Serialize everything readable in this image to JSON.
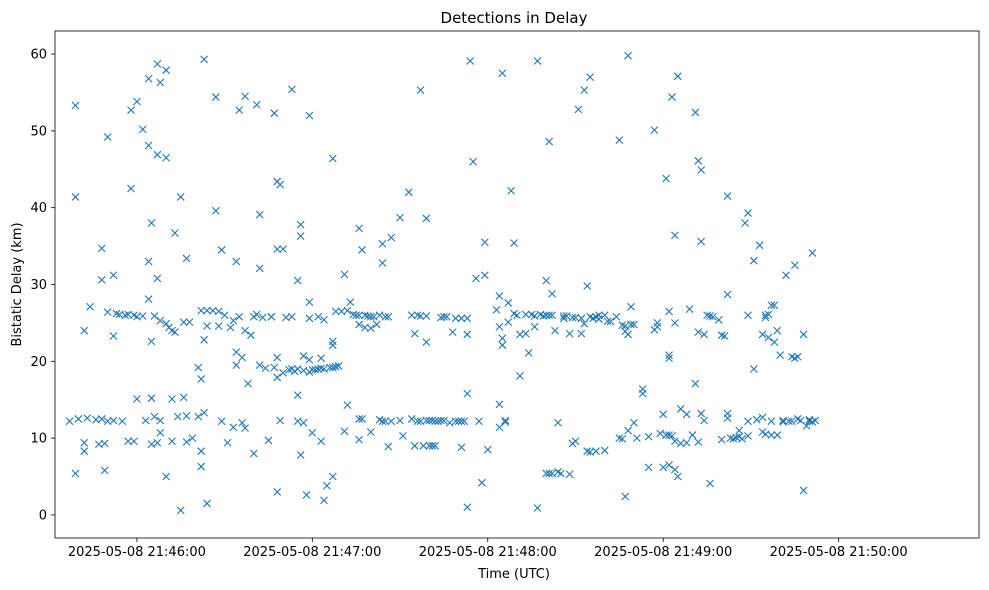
{
  "chart_data": {
    "type": "scatter",
    "title": "Detections in Delay",
    "xlabel": "Time (UTC)",
    "ylabel": "Bistatic Delay (km)",
    "marker": "x",
    "color": "#1f77b4",
    "grid": false,
    "x_unit": "seconds since 2025-05-08 21:46:00 UTC",
    "xlim": [
      -28,
      288
    ],
    "ylim": [
      -3,
      63
    ],
    "x_ticks": [
      {
        "value": 0,
        "label": "2025-05-08 21:46:00"
      },
      {
        "value": 60,
        "label": "2025-05-08 21:47:00"
      },
      {
        "value": 120,
        "label": "2025-05-08 21:48:00"
      },
      {
        "value": 180,
        "label": "2025-05-08 21:49:00"
      },
      {
        "value": 240,
        "label": "2025-05-08 21:50:00"
      }
    ],
    "y_ticks": [
      0,
      10,
      20,
      30,
      40,
      50,
      60
    ],
    "points": [
      [
        -23,
        12.2
      ],
      [
        -21,
        53.3
      ],
      [
        -21,
        41.4
      ],
      [
        -21,
        5.4
      ],
      [
        -20,
        12.5
      ],
      [
        -18,
        9.4
      ],
      [
        -18,
        24
      ],
      [
        -18,
        8.3
      ],
      [
        -17,
        12.6
      ],
      [
        -16,
        27.1
      ],
      [
        -14,
        12.4
      ],
      [
        -13,
        9.2
      ],
      [
        -12,
        34.7
      ],
      [
        -12,
        30.6
      ],
      [
        -12,
        12.5
      ],
      [
        -11,
        5.8
      ],
      [
        -11,
        9.3
      ],
      [
        -10,
        26.4
      ],
      [
        -10,
        49.2
      ],
      [
        -10,
        12.2
      ],
      [
        -8,
        31.2
      ],
      [
        -8,
        23.3
      ],
      [
        -8,
        12.3
      ],
      [
        -7,
        26.2
      ],
      [
        -6,
        26.1
      ],
      [
        -5,
        12.2
      ],
      [
        -4,
        26
      ],
      [
        -3,
        26.1
      ],
      [
        -3,
        9.6
      ],
      [
        -2,
        52.7
      ],
      [
        -2,
        42.5
      ],
      [
        -1,
        26
      ],
      [
        -1,
        9.6
      ],
      [
        0,
        25.8
      ],
      [
        0,
        53.8
      ],
      [
        0,
        15.1
      ],
      [
        2,
        50.2
      ],
      [
        2,
        25.9
      ],
      [
        3,
        12.3
      ],
      [
        4,
        28.1
      ],
      [
        4,
        33
      ],
      [
        4,
        48.1
      ],
      [
        4,
        56.8
      ],
      [
        5,
        38
      ],
      [
        5,
        22.6
      ],
      [
        5,
        15.2
      ],
      [
        5,
        9.2
      ],
      [
        6,
        25.9
      ],
      [
        6,
        12.8
      ],
      [
        7,
        58.7
      ],
      [
        7,
        46.9
      ],
      [
        7,
        30.8
      ],
      [
        7,
        9.4
      ],
      [
        8,
        56.3
      ],
      [
        8,
        25.3
      ],
      [
        8,
        10.7
      ],
      [
        8,
        12.3
      ],
      [
        10,
        57.9
      ],
      [
        10,
        46.5
      ],
      [
        10,
        24.9
      ],
      [
        10,
        5
      ],
      [
        11,
        24.4
      ],
      [
        12,
        9.6
      ],
      [
        12,
        15.1
      ],
      [
        12,
        24
      ],
      [
        13,
        36.7
      ],
      [
        13,
        23.8
      ],
      [
        14,
        12.8
      ],
      [
        15,
        41.4
      ],
      [
        15,
        0.6
      ],
      [
        16,
        25.1
      ],
      [
        16,
        15.3
      ],
      [
        17,
        33.4
      ],
      [
        17,
        12.9
      ],
      [
        17,
        9.5
      ],
      [
        18,
        25.1
      ],
      [
        19,
        10
      ],
      [
        21,
        19.2
      ],
      [
        21,
        12.8
      ],
      [
        22,
        6.3
      ],
      [
        22,
        17.7
      ],
      [
        22,
        26.6
      ],
      [
        22,
        8.3
      ],
      [
        23,
        59.3
      ],
      [
        23,
        13.3
      ],
      [
        23,
        22.8
      ],
      [
        24,
        26.6
      ],
      [
        24,
        24.6
      ],
      [
        24,
        1.5
      ],
      [
        26,
        26.6
      ],
      [
        27,
        39.6
      ],
      [
        27,
        54.4
      ],
      [
        28,
        26.5
      ],
      [
        28,
        24.6
      ],
      [
        29,
        12.2
      ],
      [
        29,
        34.5
      ],
      [
        30,
        26
      ],
      [
        31,
        9.4
      ],
      [
        32,
        24.4
      ],
      [
        33,
        25.3
      ],
      [
        33,
        11.4
      ],
      [
        34,
        33
      ],
      [
        34,
        21.2
      ],
      [
        34,
        19.5
      ],
      [
        35,
        52.7
      ],
      [
        35,
        25.8
      ],
      [
        36,
        20.5
      ],
      [
        36,
        12
      ],
      [
        37,
        54.5
      ],
      [
        37,
        24
      ],
      [
        37,
        11.3
      ],
      [
        38,
        17.1
      ],
      [
        39,
        23.4
      ],
      [
        40,
        25.8
      ],
      [
        40,
        8
      ],
      [
        41,
        53.4
      ],
      [
        41,
        26.1
      ],
      [
        42,
        32.1
      ],
      [
        42,
        39.1
      ],
      [
        42,
        19.5
      ],
      [
        43,
        25.7
      ],
      [
        44,
        19.1
      ],
      [
        45,
        9.7
      ],
      [
        46,
        25.8
      ],
      [
        46,
        25.8
      ],
      [
        47,
        52.3
      ],
      [
        47,
        19.2
      ],
      [
        48,
        43.4
      ],
      [
        48,
        34.6
      ],
      [
        48,
        20.5
      ],
      [
        48,
        17.9
      ],
      [
        48,
        3
      ],
      [
        49,
        12.3
      ],
      [
        49,
        43
      ],
      [
        50,
        34.6
      ],
      [
        50,
        18.5
      ],
      [
        51,
        25.7
      ],
      [
        52,
        18.9
      ],
      [
        53,
        25.8
      ],
      [
        53,
        55.4
      ],
      [
        53,
        19
      ],
      [
        54,
        18.7
      ],
      [
        55,
        30.5
      ],
      [
        55,
        15.6
      ],
      [
        55,
        12.2
      ],
      [
        55,
        19
      ],
      [
        56,
        37.8
      ],
      [
        56,
        36.3
      ],
      [
        56,
        7.8
      ],
      [
        57,
        12
      ],
      [
        57,
        20.7
      ],
      [
        57,
        18.8
      ],
      [
        58,
        2.6
      ],
      [
        59,
        52
      ],
      [
        59,
        25.6
      ],
      [
        59,
        27.7
      ],
      [
        59,
        20.2
      ],
      [
        59,
        18.6
      ],
      [
        60,
        10.7
      ],
      [
        60,
        18.9
      ],
      [
        61,
        18.9
      ],
      [
        62,
        19
      ],
      [
        62,
        25.8
      ],
      [
        63,
        9.6
      ],
      [
        63,
        20.4
      ],
      [
        63,
        19.1
      ],
      [
        64,
        1.9
      ],
      [
        64,
        25.4
      ],
      [
        64,
        19
      ],
      [
        65,
        3.8
      ],
      [
        66,
        19.2
      ],
      [
        67,
        46.4
      ],
      [
        67,
        22.1
      ],
      [
        67,
        22.6
      ],
      [
        67,
        19.2
      ],
      [
        67,
        5
      ],
      [
        68,
        26.5
      ],
      [
        68,
        19.3
      ],
      [
        69,
        19.4
      ],
      [
        70,
        26.5
      ],
      [
        71,
        31.3
      ],
      [
        71,
        10.9
      ],
      [
        72,
        26.6
      ],
      [
        72,
        14.3
      ],
      [
        73,
        27.7
      ],
      [
        74,
        26.1
      ],
      [
        75,
        26
      ],
      [
        76,
        26
      ],
      [
        76,
        37.3
      ],
      [
        76,
        24.8
      ],
      [
        76,
        12.5
      ],
      [
        76,
        9.8
      ],
      [
        77,
        34.5
      ],
      [
        77,
        12.5
      ],
      [
        78,
        26
      ],
      [
        78,
        24.4
      ],
      [
        79,
        25.9
      ],
      [
        80,
        25.8
      ],
      [
        80,
        24.3
      ],
      [
        80,
        10.8
      ],
      [
        81,
        25.8
      ],
      [
        82,
        24.8
      ],
      [
        83,
        26
      ],
      [
        83,
        12.4
      ],
      [
        84,
        32.8
      ],
      [
        84,
        35.3
      ],
      [
        84,
        12.2
      ],
      [
        85,
        25.8
      ],
      [
        85,
        12.2
      ],
      [
        86,
        25.8
      ],
      [
        86,
        8.9
      ],
      [
        87,
        36.1
      ],
      [
        87,
        12.2
      ],
      [
        90,
        38.7
      ],
      [
        90,
        12.3
      ],
      [
        91,
        10.3
      ],
      [
        93,
        42
      ],
      [
        94,
        26
      ],
      [
        94,
        12.5
      ],
      [
        95,
        9
      ],
      [
        95,
        23.6
      ],
      [
        96,
        26
      ],
      [
        96,
        12.2
      ],
      [
        97,
        55.3
      ],
      [
        97,
        25.9
      ],
      [
        97,
        12.2
      ],
      [
        98,
        9
      ],
      [
        99,
        38.6
      ],
      [
        99,
        25.9
      ],
      [
        99,
        12.3
      ],
      [
        99,
        22.5
      ],
      [
        100,
        12.3
      ],
      [
        100,
        9
      ],
      [
        101,
        12.3
      ],
      [
        101,
        9
      ],
      [
        102,
        12.2
      ],
      [
        102,
        9
      ],
      [
        103,
        12.2
      ],
      [
        104,
        25.7
      ],
      [
        104,
        12.3
      ],
      [
        105,
        25.8
      ],
      [
        105,
        12.3
      ],
      [
        106,
        25.8
      ],
      [
        107,
        12
      ],
      [
        108,
        23.8
      ],
      [
        109,
        25.6
      ],
      [
        109,
        12.2
      ],
      [
        110,
        12.2
      ],
      [
        111,
        25.6
      ],
      [
        111,
        12.2
      ],
      [
        111,
        8.8
      ],
      [
        112,
        12.2
      ],
      [
        113,
        25.6
      ],
      [
        113,
        23.5
      ],
      [
        113,
        15.8
      ],
      [
        113,
        1
      ],
      [
        114,
        59.1
      ],
      [
        115,
        46
      ],
      [
        116,
        30.8
      ],
      [
        117,
        12.2
      ],
      [
        118,
        4.2
      ],
      [
        119,
        35.5
      ],
      [
        119,
        31.2
      ],
      [
        120,
        8.5
      ],
      [
        123,
        26.7
      ],
      [
        124,
        28.5
      ],
      [
        124,
        14.4
      ],
      [
        124,
        11.4
      ],
      [
        124,
        24.5
      ],
      [
        125,
        57.5
      ],
      [
        125,
        22.1
      ],
      [
        125,
        23
      ],
      [
        126,
        12.1
      ],
      [
        126,
        12.3
      ],
      [
        127,
        25.1
      ],
      [
        127,
        27.6
      ],
      [
        128,
        42.2
      ],
      [
        129,
        35.4
      ],
      [
        129,
        26.2
      ],
      [
        130,
        26
      ],
      [
        131,
        18.1
      ],
      [
        131,
        23.5
      ],
      [
        133,
        23.6
      ],
      [
        133,
        26.1
      ],
      [
        134,
        21.1
      ],
      [
        135,
        26.1
      ],
      [
        136,
        24.5
      ],
      [
        136,
        25.9
      ],
      [
        137,
        59.1
      ],
      [
        137,
        0.9
      ],
      [
        138,
        26.1
      ],
      [
        139,
        25.9
      ],
      [
        140,
        26
      ],
      [
        140,
        30.5
      ],
      [
        140,
        5.4
      ],
      [
        141,
        48.6
      ],
      [
        141,
        26
      ],
      [
        141,
        5.4
      ],
      [
        142,
        5.4
      ],
      [
        142,
        26
      ],
      [
        142,
        28.8
      ],
      [
        143,
        24
      ],
      [
        144,
        5.6
      ],
      [
        144,
        12
      ],
      [
        145,
        5.4
      ],
      [
        146,
        25.9
      ],
      [
        146,
        25.6
      ],
      [
        147,
        25.9
      ],
      [
        148,
        5.3
      ],
      [
        148,
        23.6
      ],
      [
        149,
        25.7
      ],
      [
        149,
        9.3
      ],
      [
        150,
        25.7
      ],
      [
        150,
        9.6
      ],
      [
        151,
        52.8
      ],
      [
        152,
        25.6
      ],
      [
        152,
        23.6
      ],
      [
        153,
        55.3
      ],
      [
        153,
        24.9
      ],
      [
        154,
        29.8
      ],
      [
        154,
        8.3
      ],
      [
        155,
        57
      ],
      [
        155,
        25.8
      ],
      [
        155,
        8.2
      ],
      [
        156,
        25.6
      ],
      [
        157,
        25.8
      ],
      [
        157,
        8.3
      ],
      [
        158,
        25.5
      ],
      [
        158,
        26
      ],
      [
        160,
        26
      ],
      [
        160,
        8.4
      ],
      [
        161,
        25.2
      ],
      [
        162,
        25.2
      ],
      [
        164,
        25.8
      ],
      [
        165,
        48.8
      ],
      [
        165,
        10
      ],
      [
        166,
        9.9
      ],
      [
        166,
        24.7
      ],
      [
        167,
        2.4
      ],
      [
        167,
        23.9
      ],
      [
        167,
        24.6
      ],
      [
        168,
        59.8
      ],
      [
        168,
        23.5
      ],
      [
        168,
        11
      ],
      [
        169,
        27.1
      ],
      [
        169,
        24.8
      ],
      [
        170,
        12
      ],
      [
        170,
        24.8
      ],
      [
        171,
        10
      ],
      [
        173,
        16.4
      ],
      [
        173,
        15.8
      ],
      [
        175,
        10.2
      ],
      [
        175,
        6.2
      ],
      [
        177,
        50.1
      ],
      [
        177,
        24.1
      ],
      [
        178,
        25
      ],
      [
        178,
        24.5
      ],
      [
        179,
        10.6
      ],
      [
        180,
        13.1
      ],
      [
        180,
        6.2
      ],
      [
        181,
        43.8
      ],
      [
        181,
        10.4
      ],
      [
        182,
        20.8
      ],
      [
        182,
        20.4
      ],
      [
        182,
        26.5
      ],
      [
        182,
        10.4
      ],
      [
        182,
        6.5
      ],
      [
        183,
        54.4
      ],
      [
        183,
        10.3
      ],
      [
        184,
        36.4
      ],
      [
        184,
        25
      ],
      [
        184,
        9.6
      ],
      [
        184,
        5.9
      ],
      [
        185,
        57.1
      ],
      [
        185,
        5
      ],
      [
        186,
        13.8
      ],
      [
        186,
        9.3
      ],
      [
        188,
        13.1
      ],
      [
        188,
        9.4
      ],
      [
        189,
        26.8
      ],
      [
        190,
        10.4
      ],
      [
        191,
        52.4
      ],
      [
        191,
        17.1
      ],
      [
        192,
        46.1
      ],
      [
        192,
        23.8
      ],
      [
        192,
        9.5
      ],
      [
        193,
        44.9
      ],
      [
        193,
        35.6
      ],
      [
        193,
        13.2
      ],
      [
        194,
        23.5
      ],
      [
        194,
        12.3
      ],
      [
        195,
        26
      ],
      [
        196,
        25.9
      ],
      [
        196,
        4.1
      ],
      [
        197,
        25.8
      ],
      [
        199,
        25.4
      ],
      [
        200,
        23.4
      ],
      [
        200,
        9.8
      ],
      [
        201,
        23.3
      ],
      [
        202,
        41.5
      ],
      [
        202,
        28.7
      ],
      [
        202,
        13.2
      ],
      [
        202,
        12.6
      ],
      [
        203,
        10
      ],
      [
        204,
        9.9
      ],
      [
        205,
        10.1
      ],
      [
        206,
        11
      ],
      [
        206,
        10.2
      ],
      [
        207,
        9.9
      ],
      [
        208,
        38
      ],
      [
        209,
        39.3
      ],
      [
        209,
        26
      ],
      [
        209,
        12.2
      ],
      [
        209,
        10.3
      ],
      [
        211,
        33.1
      ],
      [
        211,
        19
      ],
      [
        212,
        12.4
      ],
      [
        213,
        35.1
      ],
      [
        214,
        23.5
      ],
      [
        214,
        12.7
      ],
      [
        214,
        10.8
      ],
      [
        215,
        25.7
      ],
      [
        215,
        26
      ],
      [
        215,
        10.5
      ],
      [
        216,
        23.1
      ],
      [
        216,
        26.1
      ],
      [
        217,
        27.3
      ],
      [
        217,
        12.2
      ],
      [
        217,
        10.4
      ],
      [
        218,
        22.5
      ],
      [
        218,
        27.3
      ],
      [
        219,
        10.4
      ],
      [
        219,
        24
      ],
      [
        220,
        20.8
      ],
      [
        221,
        12.3
      ],
      [
        221,
        12.1
      ],
      [
        222,
        31.2
      ],
      [
        223,
        12.2
      ],
      [
        224,
        20.6
      ],
      [
        224,
        12.2
      ],
      [
        225,
        32.5
      ],
      [
        225,
        20.4
      ],
      [
        226,
        12.5
      ],
      [
        226,
        20.6
      ],
      [
        227,
        12.3
      ],
      [
        228,
        23.5
      ],
      [
        228,
        3.2
      ],
      [
        229,
        11.6
      ],
      [
        230,
        12.2
      ],
      [
        230,
        12.4
      ],
      [
        231,
        34.1
      ],
      [
        231,
        12.1
      ],
      [
        232,
        12.3
      ]
    ]
  }
}
